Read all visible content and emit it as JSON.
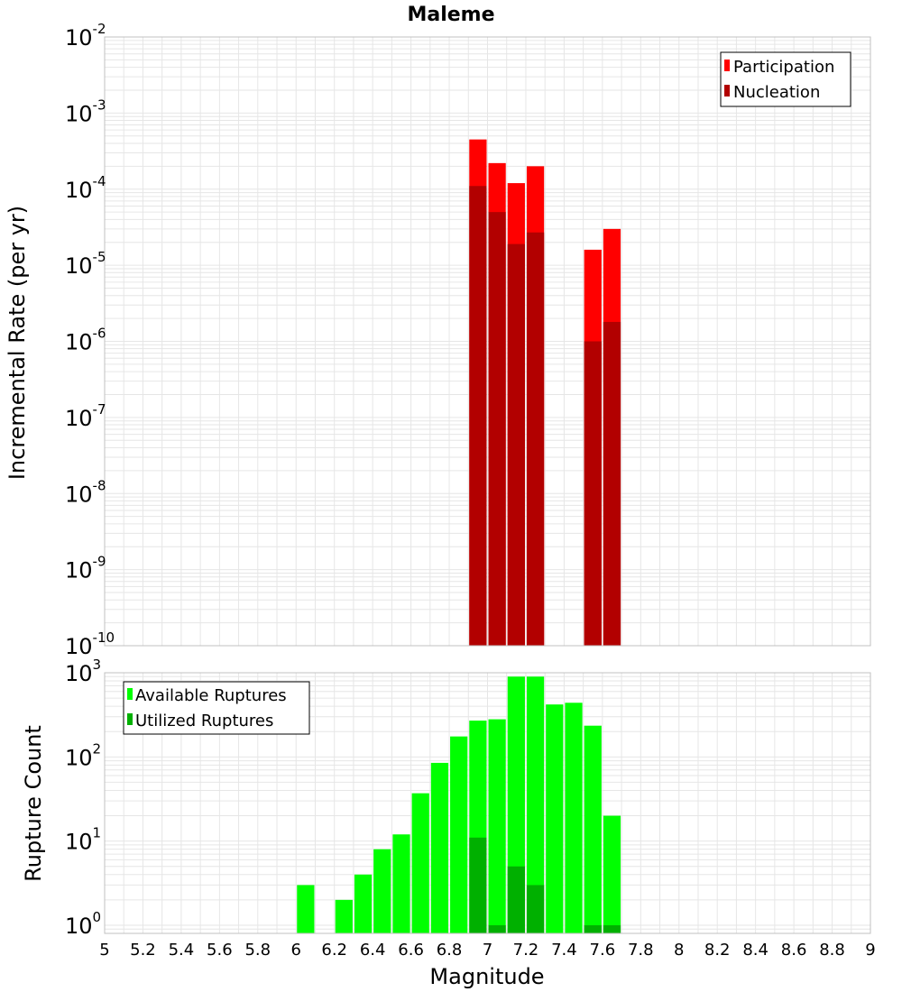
{
  "colors": {
    "participation": "#ff0000",
    "nucleation": "#b20000",
    "available": "#00ff00",
    "utilized": "#00b000",
    "grid": "#e6e6e6",
    "frame": "#c0c0c0"
  },
  "chart_data": [
    {
      "type": "bar",
      "title": "Maleme",
      "ylabel": "Incremental Rate (per yr)",
      "xlabel": "",
      "xlim": [
        5,
        9
      ],
      "ylim": [
        1e-10,
        0.01
      ],
      "yscale": "log",
      "bin_width": 0.1,
      "grid": true,
      "legend": "top-right",
      "y_ticks": [
        {
          "base": "10",
          "exp": "-2",
          "value": 0.01
        },
        {
          "base": "10",
          "exp": "-3",
          "value": 0.001
        },
        {
          "base": "10",
          "exp": "-4",
          "value": 0.0001
        },
        {
          "base": "10",
          "exp": "-5",
          "value": 1e-05
        },
        {
          "base": "10",
          "exp": "-6",
          "value": 1e-06
        },
        {
          "base": "10",
          "exp": "-7",
          "value": 1e-07
        },
        {
          "base": "10",
          "exp": "-8",
          "value": 1e-08
        },
        {
          "base": "10",
          "exp": "-9",
          "value": 1e-09
        },
        {
          "base": "10",
          "exp": "-10",
          "value": 1e-10
        }
      ],
      "series": [
        {
          "name": "Participation",
          "x": [
            6.95,
            7.05,
            7.15,
            7.25,
            7.55,
            7.65
          ],
          "values": [
            0.00045,
            0.00022,
            0.00012,
            0.0002,
            1.6e-05,
            3e-05
          ]
        },
        {
          "name": "Nucleation",
          "x": [
            6.95,
            7.05,
            7.15,
            7.25,
            7.55,
            7.65
          ],
          "values": [
            0.00011,
            5e-05,
            1.9e-05,
            2.7e-05,
            1e-06,
            1.8e-06
          ]
        }
      ]
    },
    {
      "type": "bar",
      "title": "",
      "ylabel": "Rupture Count",
      "xlabel": "Magnitude",
      "xlim": [
        5,
        9
      ],
      "ylim": [
        0.8,
        1000
      ],
      "yscale": "log",
      "bin_width": 0.1,
      "grid": true,
      "legend": "top-left",
      "x_ticks": [
        "5",
        "5.2",
        "5.4",
        "5.6",
        "5.8",
        "6",
        "6.2",
        "6.4",
        "6.6",
        "6.8",
        "7",
        "7.2",
        "7.4",
        "7.6",
        "7.8",
        "8",
        "8.2",
        "8.4",
        "8.6",
        "8.8",
        "9"
      ],
      "y_ticks": [
        {
          "base": "10",
          "exp": "3",
          "value": 1000
        },
        {
          "base": "10",
          "exp": "2",
          "value": 100
        },
        {
          "base": "10",
          "exp": "1",
          "value": 10
        },
        {
          "base": "10",
          "exp": "0",
          "value": 1
        }
      ],
      "series": [
        {
          "name": "Available Ruptures",
          "x": [
            6.05,
            6.25,
            6.35,
            6.45,
            6.55,
            6.65,
            6.75,
            6.85,
            6.95,
            7.05,
            7.15,
            7.25,
            7.35,
            7.45,
            7.55,
            7.65
          ],
          "values": [
            3,
            2,
            4,
            8,
            12,
            37,
            85,
            175,
            270,
            280,
            900,
            900,
            420,
            440,
            235,
            20
          ]
        },
        {
          "name": "Utilized Ruptures",
          "x": [
            6.95,
            7.05,
            7.15,
            7.25,
            7.55,
            7.65
          ],
          "values": [
            11,
            1,
            5,
            3,
            1,
            1
          ]
        }
      ]
    }
  ]
}
